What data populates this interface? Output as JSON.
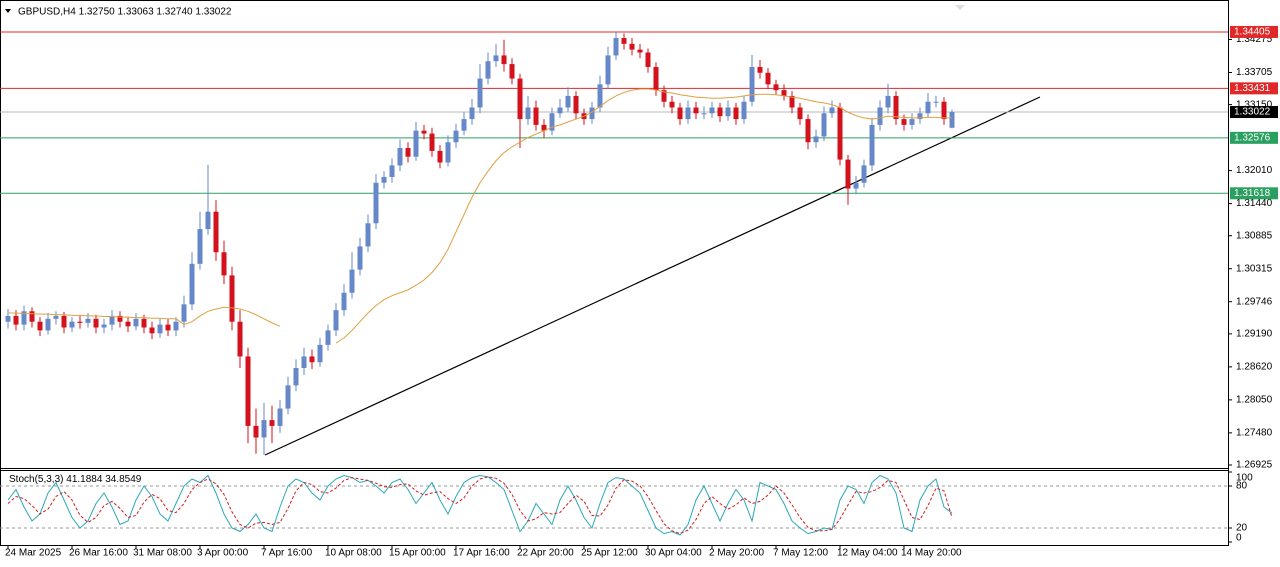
{
  "chart_data": {
    "type": "candlestick",
    "title": "GBPUSD,H4  1.32750 1.33063 1.32740 1.33022",
    "categories": [
      "24 Mar 2025",
      null,
      null,
      null,
      null,
      null,
      null,
      null,
      "26 Mar 16:00",
      null,
      null,
      null,
      null,
      null,
      null,
      null,
      "31 Mar 08:00",
      null,
      null,
      null,
      null,
      null,
      null,
      null,
      "3 Apr 00:00",
      null,
      null,
      null,
      null,
      null,
      null,
      null,
      "7 Apr 16:00",
      null,
      null,
      null,
      null,
      null,
      null,
      null,
      "10 Apr 08:00",
      null,
      null,
      null,
      null,
      null,
      null,
      null,
      "15 Apr 00:00",
      null,
      null,
      null,
      null,
      null,
      null,
      null,
      "17 Apr 16:00",
      null,
      null,
      null,
      null,
      null,
      null,
      null,
      "22 Apr 20:00",
      null,
      null,
      null,
      null,
      null,
      null,
      null,
      "25 Apr 12:00",
      null,
      null,
      null,
      null,
      null,
      null,
      null,
      "30 Apr 04:00",
      null,
      null,
      null,
      null,
      null,
      null,
      null,
      "2 May 20:00",
      null,
      null,
      null,
      null,
      null,
      null,
      null,
      "7 May 12:00",
      null,
      null,
      null,
      null,
      null,
      null,
      null,
      "12 May 04:00",
      null,
      null,
      null,
      null,
      null,
      null,
      null,
      "14 May 20:00",
      null,
      null,
      null,
      null,
      null,
      null
    ],
    "open": [
      1.294,
      1.295,
      1.2935,
      1.2958,
      1.294,
      1.2925,
      1.2945,
      1.295,
      1.293,
      1.294,
      1.2938,
      1.2945,
      1.293,
      1.2935,
      1.295,
      1.294,
      1.2932,
      1.2945,
      1.293,
      1.292,
      1.2935,
      1.2925,
      1.294,
      1.297,
      1.304,
      1.31,
      1.313,
      1.306,
      1.302,
      1.294,
      1.288,
      1.276,
      1.274,
      1.277,
      1.276,
      1.279,
      1.283,
      1.286,
      1.288,
      1.287,
      1.29,
      1.2925,
      1.296,
      1.299,
      1.303,
      1.307,
      1.311,
      1.318,
      1.319,
      1.321,
      1.324,
      1.3225,
      1.327,
      1.3265,
      1.3235,
      1.3215,
      1.325,
      1.327,
      1.329,
      1.331,
      1.336,
      1.339,
      1.34,
      1.3385,
      1.336,
      1.329,
      1.331,
      1.328,
      1.327,
      1.33,
      1.331,
      1.333,
      1.33,
      1.329,
      1.331,
      1.335,
      1.34,
      1.343,
      1.342,
      1.341,
      1.3405,
      1.338,
      1.334,
      1.332,
      1.331,
      1.329,
      1.331,
      1.33,
      1.33,
      1.331,
      1.3295,
      1.331,
      1.329,
      1.332,
      1.338,
      1.337,
      1.335,
      1.334,
      1.333,
      1.331,
      1.329,
      1.325,
      1.326,
      1.33,
      1.331,
      1.322,
      1.317,
      1.318,
      1.321,
      1.328,
      1.331,
      1.333,
      1.329,
      1.328,
      1.329,
      1.33,
      1.332,
      1.332,
      1.3275
    ],
    "high": [
      1.2962,
      1.296,
      1.2968,
      1.2965,
      1.2948,
      1.2955,
      1.2958,
      1.2957,
      1.2948,
      1.295,
      1.2955,
      1.2952,
      1.2945,
      1.296,
      1.2958,
      1.2948,
      1.2955,
      1.2952,
      1.294,
      1.2945,
      1.2945,
      1.2948,
      1.2985,
      1.306,
      1.313,
      1.3211,
      1.315,
      1.308,
      1.3035,
      1.296,
      1.2895,
      1.279,
      1.28,
      1.2795,
      1.2805,
      1.2845,
      1.2875,
      1.2895,
      1.2892,
      1.2912,
      1.2935,
      1.2972,
      1.3005,
      1.306,
      1.3085,
      1.3125,
      1.3195,
      1.32,
      1.3222,
      1.3255,
      1.325,
      1.3285,
      1.328,
      1.3275,
      1.3245,
      1.3262,
      1.3282,
      1.3302,
      1.3325,
      1.3385,
      1.3405,
      1.342,
      1.3427,
      1.3395,
      1.3368,
      1.333,
      1.3322,
      1.329,
      1.331,
      1.3325,
      1.3345,
      1.3338,
      1.3308,
      1.332,
      1.3365,
      1.3415,
      1.344,
      1.3438,
      1.343,
      1.342,
      1.3412,
      1.3388,
      1.3348,
      1.333,
      1.3318,
      1.3322,
      1.332,
      1.3312,
      1.332,
      1.3318,
      1.3322,
      1.3318,
      1.333,
      1.3401,
      1.3392,
      1.3378,
      1.3358,
      1.335,
      1.3338,
      1.3318,
      1.3298,
      1.3272,
      1.3312,
      1.3322,
      1.3318,
      1.3228,
      1.3192,
      1.322,
      1.3292,
      1.3322,
      1.3351,
      1.3338,
      1.3298,
      1.33,
      1.331,
      1.3335,
      1.333,
      1.3328,
      1.33063
    ],
    "low": [
      1.2928,
      1.2925,
      1.2925,
      1.293,
      1.2915,
      1.2918,
      1.2935,
      1.292,
      1.2922,
      1.2928,
      1.293,
      1.292,
      1.292,
      1.2925,
      1.293,
      1.2922,
      1.2925,
      1.292,
      1.291,
      1.2912,
      1.2915,
      1.2915,
      1.293,
      1.296,
      1.303,
      1.309,
      1.3045,
      1.3005,
      1.2925,
      1.286,
      1.273,
      1.2712,
      1.271,
      1.273,
      1.2748,
      1.278,
      1.282,
      1.2848,
      1.2858,
      1.2862,
      1.289,
      1.2915,
      1.295,
      1.298,
      1.302,
      1.306,
      1.31,
      1.317,
      1.318,
      1.32,
      1.3215,
      1.3218,
      1.3255,
      1.3225,
      1.3205,
      1.3208,
      1.324,
      1.3262,
      1.328,
      1.33,
      1.335,
      1.338,
      1.3372,
      1.335,
      1.324,
      1.328,
      1.327,
      1.3258,
      1.3262,
      1.3292,
      1.3302,
      1.329,
      1.328,
      1.3282,
      1.3302,
      1.3342,
      1.3392,
      1.341,
      1.34,
      1.3395,
      1.337,
      1.333,
      1.331,
      1.33,
      1.328,
      1.3282,
      1.329,
      1.329,
      1.3292,
      1.3285,
      1.3287,
      1.328,
      1.3282,
      1.3312,
      1.336,
      1.3342,
      1.3332,
      1.3322,
      1.33,
      1.328,
      1.3238,
      1.324,
      1.3252,
      1.3292,
      1.321,
      1.3142,
      1.316,
      1.3172,
      1.32,
      1.327,
      1.33,
      1.328,
      1.327,
      1.3272,
      1.3282,
      1.3292,
      1.331,
      1.328,
      1.3274
    ],
    "close": [
      1.295,
      1.2935,
      1.2958,
      1.294,
      1.2925,
      1.2945,
      1.295,
      1.293,
      1.294,
      1.2938,
      1.2945,
      1.293,
      1.2935,
      1.295,
      1.294,
      1.2932,
      1.2945,
      1.293,
      1.292,
      1.2935,
      1.2925,
      1.294,
      1.297,
      1.304,
      1.31,
      1.313,
      1.306,
      1.302,
      1.294,
      1.288,
      1.276,
      1.274,
      1.277,
      1.276,
      1.279,
      1.283,
      1.286,
      1.288,
      1.287,
      1.29,
      1.2925,
      1.296,
      1.299,
      1.303,
      1.307,
      1.311,
      1.318,
      1.319,
      1.321,
      1.324,
      1.3225,
      1.327,
      1.3265,
      1.3235,
      1.3215,
      1.325,
      1.327,
      1.329,
      1.331,
      1.336,
      1.339,
      1.34,
      1.3385,
      1.336,
      1.329,
      1.331,
      1.328,
      1.327,
      1.33,
      1.331,
      1.333,
      1.33,
      1.329,
      1.331,
      1.335,
      1.34,
      1.343,
      1.342,
      1.341,
      1.3405,
      1.338,
      1.334,
      1.332,
      1.331,
      1.329,
      1.331,
      1.33,
      1.33,
      1.331,
      1.3295,
      1.331,
      1.329,
      1.332,
      1.338,
      1.337,
      1.335,
      1.334,
      1.333,
      1.331,
      1.329,
      1.325,
      1.326,
      1.33,
      1.331,
      1.322,
      1.317,
      1.318,
      1.321,
      1.328,
      1.331,
      1.333,
      1.329,
      1.328,
      1.329,
      1.33,
      1.332,
      1.332,
      1.329,
      1.33022
    ],
    "up_color": "#6688c8",
    "down_color": "#d4121e",
    "ylim": [
      1.26873,
      1.34957
    ],
    "yticks": [
      1.34275,
      1.33705,
      {
        "value": 1.3315,
        "label": "1.33150"
      },
      {
        "value": 1.3201,
        "label": "1.32010"
      },
      {
        "value": 1.3144,
        "label": "1.31440"
      },
      1.30885,
      1.30315,
      1.29746,
      {
        "value": 1.2919,
        "label": "1.29190"
      },
      {
        "value": 1.2862,
        "label": "1.28620"
      },
      {
        "value": 1.2805,
        "label": "1.28050"
      },
      {
        "value": 1.2748,
        "label": "1.27480"
      },
      1.26925
    ],
    "ma": {
      "color": "#e0a040",
      "values": [
        1.2955,
        1.2955,
        1.2954,
        1.2954,
        1.2953,
        1.2953,
        1.2952,
        1.2952,
        1.2951,
        1.2951,
        1.295,
        1.295,
        1.2949,
        1.2949,
        1.2948,
        1.2948,
        1.2947,
        1.2947,
        1.2946,
        1.2946,
        1.2945,
        1.2945,
        1.2935,
        1.294,
        1.295,
        1.2958,
        1.2962,
        1.2965,
        1.2964,
        1.2962,
        1.2958,
        1.2952,
        1.2945,
        1.2938,
        1.2932,
        null,
        null,
        null,
        null,
        null,
        null,
        1.2903,
        1.2912,
        1.2925,
        1.294,
        1.2955,
        1.2968,
        1.2978,
        1.2985,
        1.299,
        1.2995,
        1.3003,
        1.3012,
        1.3025,
        1.3042,
        1.3065,
        1.3095,
        1.3125,
        1.3155,
        1.318,
        1.32,
        1.3218,
        1.3232,
        1.3242,
        1.325,
        1.3258,
        1.3264,
        1.327,
        1.3276,
        1.328,
        1.3285,
        1.329,
        1.3295,
        1.3302,
        1.3312,
        1.3322,
        1.333,
        1.3336,
        1.334,
        1.3342,
        1.3342,
        1.334,
        1.3337,
        1.3335,
        1.3332,
        1.333,
        1.3328,
        1.3327,
        1.3326,
        1.3326,
        1.3327,
        1.3328,
        1.333,
        1.3332,
        1.3333,
        1.3333,
        1.3332,
        1.333,
        1.3328,
        1.3326,
        1.3323,
        1.332,
        1.3318,
        1.3315,
        1.331,
        1.3302,
        1.3296,
        1.3292,
        1.329,
        1.3292,
        1.3295,
        1.3294,
        1.3293,
        1.3292,
        1.3292,
        1.3293,
        1.3293,
        1.3292,
        1.3292
      ]
    },
    "levels": [
      {
        "value": 1.34405,
        "color": "#e02828"
      },
      {
        "value": 1.33431,
        "color": "#e02828"
      },
      {
        "value": 1.33022,
        "color": "#b8b8b8"
      },
      {
        "value": 1.32576,
        "color": "#2aa060"
      },
      {
        "value": 1.31618,
        "color": "#2aa060"
      }
    ],
    "indicator": {
      "type": "line",
      "name": "Stoch(5,3,3)",
      "ylim": [
        0,
        100
      ],
      "yticks": [
        100,
        80,
        20,
        0
      ],
      "series": [
        {
          "color": "#2aa8b8",
          "values": [
            60,
            75,
            50,
            30,
            40,
            70,
            85,
            60,
            35,
            20,
            30,
            55,
            70,
            50,
            25,
            30,
            60,
            80,
            65,
            40,
            30,
            55,
            80,
            90,
            85,
            95,
            70,
            40,
            20,
            15,
            25,
            40,
            20,
            15,
            50,
            80,
            90,
            85,
            70,
            60,
            80,
            90,
            95,
            92,
            85,
            88,
            80,
            70,
            85,
            90,
            75,
            55,
            70,
            85,
            60,
            40,
            65,
            85,
            92,
            95,
            93,
            85,
            75,
            45,
            15,
            30,
            55,
            40,
            25,
            60,
            80,
            60,
            35,
            20,
            55,
            85,
            92,
            90,
            80,
            70,
            45,
            20,
            12,
            15,
            10,
            25,
            60,
            80,
            55,
            30,
            55,
            75,
            60,
            30,
            85,
            80,
            75,
            55,
            30,
            20,
            12,
            15,
            20,
            18,
            60,
            80,
            75,
            55,
            85,
            95,
            90,
            70,
            20,
            15,
            60,
            80,
            90,
            50,
            41.1884
          ]
        },
        {
          "color": "#d02020",
          "values": [
            55,
            65,
            62,
            52,
            40,
            47,
            65,
            72,
            60,
            38,
            28,
            35,
            52,
            58,
            48,
            35,
            38,
            57,
            68,
            62,
            45,
            42,
            55,
            75,
            85,
            90,
            83,
            68,
            43,
            25,
            20,
            27,
            28,
            25,
            28,
            48,
            73,
            85,
            82,
            72,
            70,
            77,
            88,
            92,
            90,
            88,
            84,
            79,
            78,
            82,
            83,
            73,
            67,
            70,
            72,
            62,
            55,
            63,
            80,
            90,
            93,
            91,
            84,
            68,
            45,
            30,
            33,
            42,
            40,
            42,
            55,
            67,
            58,
            38,
            37,
            53,
            77,
            89,
            87,
            80,
            65,
            45,
            26,
            16,
            12,
            17,
            32,
            55,
            65,
            55,
            47,
            53,
            63,
            55,
            58,
            67,
            80,
            70,
            53,
            35,
            21,
            16,
            16,
            18,
            33,
            53,
            72,
            70,
            72,
            78,
            88,
            85,
            60,
            35,
            32,
            52,
            77,
            73,
            34.8549
          ]
        }
      ]
    }
  }
}
